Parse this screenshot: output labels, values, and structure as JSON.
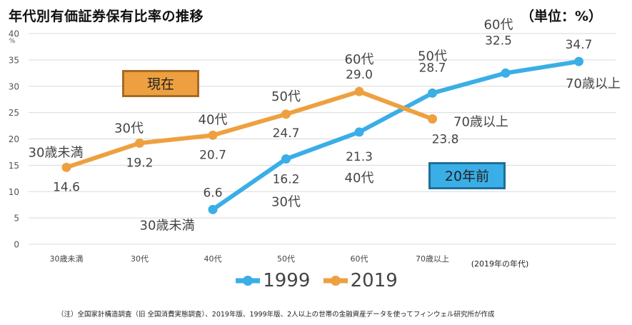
{
  "title": "年代別有価証券保有比率の推移",
  "unit": "（単位：%）",
  "note": "（注）全国家計構造調査（旧 全国消費実態調査）、2019年版、1999年版、2人以上の世帯の金融資産データを使ってフィンウェル研究所が作成",
  "chart_data": {
    "type": "line",
    "categories": [
      "30歳未満",
      "30代",
      "40代",
      "50代",
      "60代",
      "70歳以上"
    ],
    "xlabel": "(2019年の年代)",
    "ylabel": "%",
    "ylim": [
      0,
      40
    ],
    "yticks": [
      "0",
      "5",
      "10",
      "15",
      "20",
      "25",
      "30",
      "35",
      "40"
    ],
    "grid": true,
    "legend_position": "bottom",
    "series": [
      {
        "name": "1999",
        "color": "#3aaee6",
        "x": [
          2,
          3,
          4,
          5,
          6,
          7
        ],
        "values": [
          6.6,
          16.2,
          21.3,
          28.7,
          32.5,
          34.7
        ],
        "value_labels": [
          "6.6",
          "16.2",
          "21.3",
          "28.7",
          "32.5",
          "34.7"
        ],
        "point_labels": [
          "30歳未満",
          "30代",
          "40代",
          "50代",
          "60代",
          "70歳以上"
        ],
        "box_label": "20年前"
      },
      {
        "name": "2019",
        "color": "#eea040",
        "x": [
          0,
          1,
          2,
          3,
          4,
          5
        ],
        "values": [
          14.6,
          19.2,
          20.7,
          24.7,
          29.0,
          23.8
        ],
        "value_labels": [
          "14.6",
          "19.2",
          "20.7",
          "24.7",
          "29.0",
          "23.8"
        ],
        "point_labels": [
          "30歳未満",
          "30代",
          "40代",
          "50代",
          "60代",
          "70歳以上"
        ],
        "box_label": "現在"
      }
    ]
  }
}
